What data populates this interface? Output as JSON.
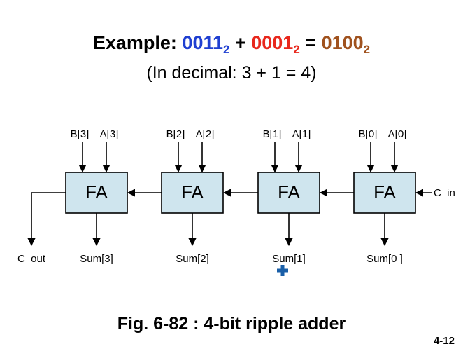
{
  "header": {
    "title_prefix": "Example: ",
    "a_value": "0011",
    "a_base": "2",
    "plus": " + ",
    "b_value": "0001",
    "b_base": "2",
    "equals": " = ",
    "result_value": "0100",
    "result_base": "2",
    "subtitle": "(In decimal: 3 + 1 = 4)"
  },
  "colors": {
    "a_value": "#1f3fd1",
    "b_value": "#e8271c",
    "result_value": "#a0521e",
    "fa_fill": "#cfe5ee",
    "cursor": "#1a5fa8"
  },
  "adders": [
    {
      "label": "FA",
      "b_input": "B[3]",
      "a_input": "A[3]",
      "sum": "Sum[3]"
    },
    {
      "label": "FA",
      "b_input": "B[2]",
      "a_input": "A[2]",
      "sum": "Sum[2]"
    },
    {
      "label": "FA",
      "b_input": "B[1]",
      "a_input": "A[1]",
      "sum": "Sum[1]"
    },
    {
      "label": "FA",
      "b_input": "B[0]",
      "a_input": "A[0]",
      "sum": "Sum[0 ]"
    }
  ],
  "carry_in": "C_in",
  "carry_out": "C_out",
  "caption": "Fig. 6-82 : 4-bit ripple adder",
  "page_number": "4-12",
  "cursor_icon": "move-cursor-icon"
}
